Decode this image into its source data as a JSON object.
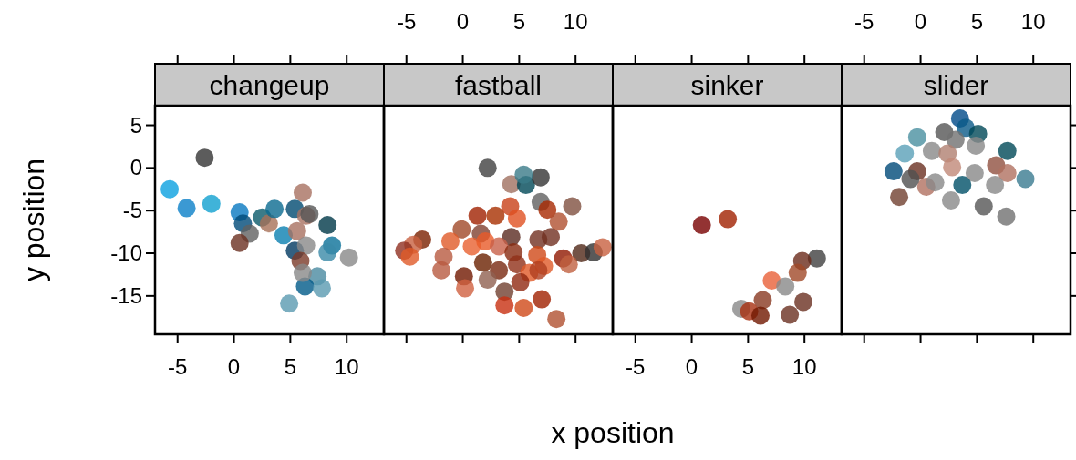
{
  "chart_data": [
    {
      "type": "scatter",
      "title": "changeup",
      "xlabel": "x position",
      "ylabel": "y position",
      "xlim": [
        -7,
        13.3
      ],
      "xticks": [
        -5,
        0,
        5,
        10
      ],
      "ylim": [
        -19.5,
        7.3
      ],
      "yticks": [
        5,
        0,
        -5,
        -10,
        -15
      ],
      "grid": false,
      "marker": "circle",
      "x": [
        -2.6,
        -5.7,
        -4.2,
        -2.0,
        0.5,
        0.8,
        1.4,
        0.5,
        2.5,
        3.1,
        3.6,
        6.1,
        5.4,
        6.4,
        6.7,
        8.3,
        4.4,
        5.6,
        5.4,
        6.4,
        5.9,
        8.7,
        8.3,
        10.2,
        7.4,
        6.3,
        7.8,
        4.9,
        6.1
      ],
      "values": [
        1.2,
        -2.5,
        -4.7,
        -4.2,
        -5.2,
        -6.5,
        -7.7,
        -8.8,
        -5.8,
        -6.5,
        -4.8,
        -2.9,
        -4.8,
        -5.6,
        -5.4,
        -6.7,
        -7.9,
        -7.4,
        -9.7,
        -9.1,
        -10.9,
        -9.1,
        -9.9,
        -10.5,
        -12.7,
        -13.9,
        -14.1,
        -15.9,
        -12.3
      ],
      "colors": [
        "#333333",
        "#0aa0e0",
        "#0a80c8",
        "#10a0d0",
        "#0878c0",
        "#004a78",
        "#606060",
        "#6a3020",
        "#0a5a6a",
        "#a87058",
        "#0a6a90",
        "#a87060",
        "#004a70",
        "#a87060",
        "#555555",
        "#003848",
        "#0a80b0",
        "#a87060",
        "#003860",
        "#888888",
        "#7a3a28",
        "#0a7098",
        "#3a8aa8",
        "#888888",
        "#4a8aa0",
        "#005a88",
        "#5a9ab0",
        "#5a9ab0",
        "#888888"
      ]
    },
    {
      "type": "scatter",
      "title": "fastball",
      "xlim": [
        -7,
        13.3
      ],
      "xticks": [
        -5,
        0,
        5,
        10
      ],
      "ylim": [
        -19.5,
        7.3
      ],
      "yticks": [
        5,
        0,
        -5,
        -10,
        -15
      ],
      "tick_labels": "x",
      "grid": false,
      "marker": "circle",
      "x": [
        2.2,
        4.3,
        5.6,
        6.9,
        5.4,
        6.9,
        9.7,
        7.5,
        4.2,
        8.5,
        1.3,
        2.9,
        4.8,
        -0.1,
        1.6,
        4.3,
        6.7,
        7.8,
        -3.6,
        -1.1,
        -4.4,
        -5.2,
        -4.7,
        -1.7,
        -1.9,
        0.8,
        2.0,
        3.2,
        4.5,
        6.6,
        7.2,
        8.9,
        10.5,
        11.6,
        12.4,
        1.8,
        3.2,
        4.8,
        5.9,
        0.1,
        0.2,
        2.2,
        3.7,
        5.1,
        3.7,
        5.4,
        7.0,
        8.3,
        6.7,
        9.4
      ],
      "values": [
        0.0,
        -1.9,
        -2.0,
        -1.1,
        -0.8,
        -4.0,
        -4.5,
        -4.9,
        -4.5,
        -6.3,
        -5.6,
        -5.6,
        -5.9,
        -7.2,
        -7.7,
        -8.1,
        -8.4,
        -8.1,
        -8.4,
        -8.6,
        -9.0,
        -9.7,
        -10.4,
        -10.4,
        -12.0,
        -9.2,
        -8.6,
        -9.2,
        -9.9,
        -10.2,
        -11.5,
        -10.6,
        -10.0,
        -9.9,
        -9.3,
        -11.1,
        -12.0,
        -11.3,
        -12.3,
        -12.7,
        -14.1,
        -13.1,
        -14.5,
        -13.4,
        -16.1,
        -16.4,
        -15.4,
        -17.7,
        -12.0,
        -11.3
      ],
      "colors": [
        "#404040",
        "#a07060",
        "#004858",
        "#333333",
        "#3a7a88",
        "#606060",
        "#805040",
        "#a82800",
        "#c84018",
        "#b05030",
        "#a02000",
        "#a83000",
        "#e05020",
        "#a04828",
        "#804030",
        "#5a2a20",
        "#703020",
        "#703020",
        "#7a2000",
        "#e05a28",
        "#c86040",
        "#903020",
        "#e05a28",
        "#b85a40",
        "#b85a40",
        "#e86030",
        "#e85a28",
        "#c86048",
        "#882a10",
        "#d04818",
        "#e05a28",
        "#901800",
        "#502818",
        "#303030",
        "#c86040",
        "#6a2000",
        "#782810",
        "#903018",
        "#e05a28",
        "#701800",
        "#d06040",
        "#906050",
        "#704030",
        "#902810",
        "#c83010",
        "#d04818",
        "#a02000",
        "#b05030",
        "#b04020",
        "#c06040"
      ]
    },
    {
      "type": "scatter",
      "title": "sinker",
      "xlim": [
        -7,
        13.3
      ],
      "xticks": [
        -5,
        0,
        5,
        10
      ],
      "ylim": [
        -19.5,
        7.3
      ],
      "yticks": [
        5,
        0,
        -5,
        -10,
        -15
      ],
      "tick_labels": "x",
      "grid": false,
      "marker": "circle",
      "x": [
        0.9,
        3.2,
        11.1,
        9.8,
        9.4,
        7.1,
        8.3,
        9.9,
        6.3,
        4.4,
        5.1,
        6.1,
        8.7
      ],
      "values": [
        -6.7,
        -6.0,
        -10.6,
        -10.9,
        -12.3,
        -13.2,
        -13.9,
        -15.7,
        -15.5,
        -16.5,
        -16.8,
        -17.3,
        -17.2
      ],
      "colors": [
        "#780000",
        "#a02000",
        "#404040",
        "#6a2a1a",
        "#a04828",
        "#e86038",
        "#888888",
        "#6a3020",
        "#883820",
        "#888888",
        "#a83010",
        "#701800",
        "#6a3020"
      ]
    },
    {
      "type": "scatter",
      "title": "slider",
      "xlim": [
        -7,
        13.3
      ],
      "xticks": [
        -5,
        0,
        5,
        10
      ],
      "ylim": [
        -19.5,
        7.3
      ],
      "yticks": [
        5,
        0,
        -5,
        -10,
        -15
      ],
      "tick_labels": "x",
      "grid": false,
      "marker": "circle",
      "x": [
        3.5,
        4.0,
        5.1,
        7.7,
        -0.3,
        -1.4,
        1.0,
        2.1,
        3.1,
        4.9,
        2.4,
        2.8,
        -2.4,
        -0.3,
        0.5,
        1.3,
        4.8,
        6.7,
        7.7,
        6.6,
        9.3,
        -1.9,
        2.7,
        5.6,
        7.6,
        -0.9,
        3.7
      ],
      "values": [
        5.8,
        4.7,
        4.0,
        2.0,
        3.6,
        1.7,
        2.0,
        4.2,
        3.3,
        2.6,
        1.7,
        0.1,
        -0.4,
        -0.4,
        -2.2,
        -1.7,
        -0.6,
        0.3,
        -0.6,
        -2.0,
        -1.3,
        -3.4,
        -3.8,
        -4.5,
        -5.7,
        -1.3,
        -2.0
      ],
      "colors": [
        "#004a88",
        "#0a5a88",
        "#004858",
        "#004858",
        "#4a90a0",
        "#5aa0b8",
        "#888888",
        "#555555",
        "#707070",
        "#888888",
        "#b08070",
        "#c08878",
        "#004a78",
        "#6a3020",
        "#b07060",
        "#888888",
        "#888888",
        "#905040",
        "#b07060",
        "#888888",
        "#3a7a90",
        "#704030",
        "#888888",
        "#555555",
        "#707070",
        "#505050",
        "#005068"
      ]
    }
  ]
}
